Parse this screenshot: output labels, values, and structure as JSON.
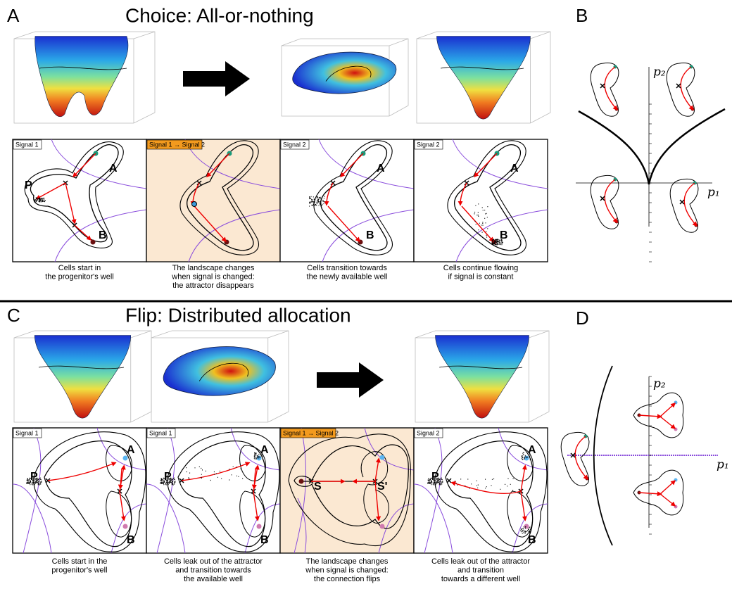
{
  "panels": [
    {
      "letter": "A",
      "title": "Choice: All-or-nothing",
      "frames": [
        {
          "signal": "Signal 1",
          "labels": [
            "P",
            "A",
            "B"
          ],
          "caption": [
            "Cells start in",
            "the progenitor's well"
          ]
        },
        {
          "signal": "Signal 1 → Signal 2",
          "labels": [],
          "caption": [
            "The landscape changes",
            "when signal is changed:",
            "the attractor disappears"
          ]
        },
        {
          "signal": "Signal 2",
          "labels": [
            "A",
            "B"
          ],
          "caption": [
            "Cells transition towards",
            "the newly available well"
          ]
        },
        {
          "signal": "Signal 2",
          "labels": [
            "A",
            "B"
          ],
          "caption": [
            "Cells continue flowing",
            "if signal is constant"
          ]
        }
      ]
    },
    {
      "letter": "C",
      "title": "Flip: Distributed allocation",
      "frames": [
        {
          "signal": "Signal 1",
          "labels": [
            "P",
            "A",
            "B"
          ],
          "caption": [
            "Cells start in the",
            "progenitor's well"
          ]
        },
        {
          "signal": "Signal 1",
          "labels": [
            "P",
            "A",
            "B"
          ],
          "caption": [
            "Cells leak out of the attractor",
            "and transition towards",
            "the available well"
          ]
        },
        {
          "signal": "Signal 1 → Signal 2",
          "labels": [
            "S",
            "S'"
          ],
          "caption": [
            "The landscape changes",
            "when signal is changed:",
            "the connection flips"
          ]
        },
        {
          "signal": "Signal 2",
          "labels": [
            "P",
            "A",
            "B"
          ],
          "caption": [
            "Cells leak out of the attractor",
            "and transition",
            "towards a different well"
          ]
        }
      ]
    }
  ],
  "side_panels": [
    {
      "letter": "B",
      "x_label": "p₁",
      "y_label": "p₂"
    },
    {
      "letter": "D",
      "x_label": "p₁",
      "y_label": "p₂"
    }
  ]
}
